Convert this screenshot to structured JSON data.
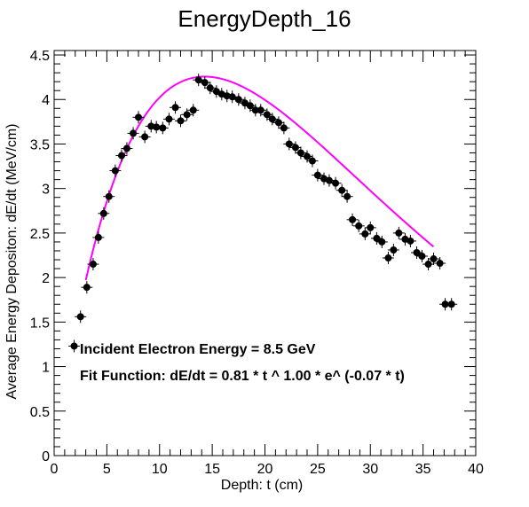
{
  "chart_data": {
    "type": "scatter",
    "title": "EnergyDepth_16",
    "xlabel": "Depth: t (cm)",
    "ylabel": "Average Energy Depositon: dE/dt (MeV/cm)",
    "xlim": [
      0,
      40
    ],
    "ylim": [
      0,
      4.55
    ],
    "xticks": [
      0,
      5,
      10,
      15,
      20,
      25,
      30,
      35,
      40
    ],
    "yticks": [
      0,
      0.5,
      1,
      1.5,
      2,
      2.5,
      3,
      3.5,
      4,
      4.5
    ],
    "grid": false,
    "legend": "none",
    "series": [
      {
        "type": "points-with-errorbars",
        "color": "#000000",
        "x": [
          1.9,
          2.5,
          3.1,
          3.7,
          4.2,
          4.7,
          5.2,
          5.8,
          6.4,
          6.9,
          7.5,
          8.0,
          8.6,
          9.2,
          9.7,
          10.3,
          10.9,
          11.5,
          12.0,
          12.6,
          13.2,
          13.7,
          14.3,
          14.8,
          15.4,
          15.9,
          16.4,
          16.9,
          17.5,
          18.1,
          18.6,
          19.1,
          19.6,
          20.2,
          20.7,
          21.3,
          21.8,
          22.3,
          22.9,
          23.4,
          24.0,
          24.5,
          25.0,
          25.6,
          26.1,
          26.7,
          27.3,
          27.8,
          28.3,
          28.9,
          29.5,
          30.0,
          30.6,
          31.1,
          31.7,
          32.2,
          32.7,
          33.3,
          33.8,
          34.4,
          34.9,
          35.5,
          36.0,
          36.6,
          37.1,
          37.7
        ],
        "y": [
          1.23,
          1.56,
          1.89,
          2.15,
          2.45,
          2.72,
          2.91,
          3.2,
          3.37,
          3.45,
          3.62,
          3.8,
          3.58,
          3.7,
          3.69,
          3.68,
          3.78,
          3.91,
          3.76,
          3.83,
          3.88,
          4.22,
          4.19,
          4.13,
          4.09,
          4.06,
          4.04,
          4.03,
          4.0,
          3.96,
          3.93,
          3.88,
          3.88,
          3.83,
          3.78,
          3.74,
          3.68,
          3.5,
          3.46,
          3.4,
          3.36,
          3.31,
          3.15,
          3.11,
          3.09,
          3.06,
          2.98,
          2.91,
          2.65,
          2.58,
          2.49,
          2.56,
          2.44,
          2.4,
          2.22,
          2.31,
          2.5,
          2.43,
          2.41,
          2.28,
          2.24,
          2.15,
          2.21,
          2.16,
          1.7,
          1.7
        ],
        "yerr": 0.07
      },
      {
        "type": "fit-curve",
        "color": "#ff00ff",
        "function": "0.81 * t^1.00 * e^(-0.07*t)",
        "x_range": [
          3.0,
          36.0
        ]
      }
    ],
    "annotations": [
      "Incident Electron Energy = 8.5 GeV",
      "Fit Function: dE/dt = 0.81 * t ^ 1.00 *  e^ (-0.07 * t)"
    ]
  }
}
